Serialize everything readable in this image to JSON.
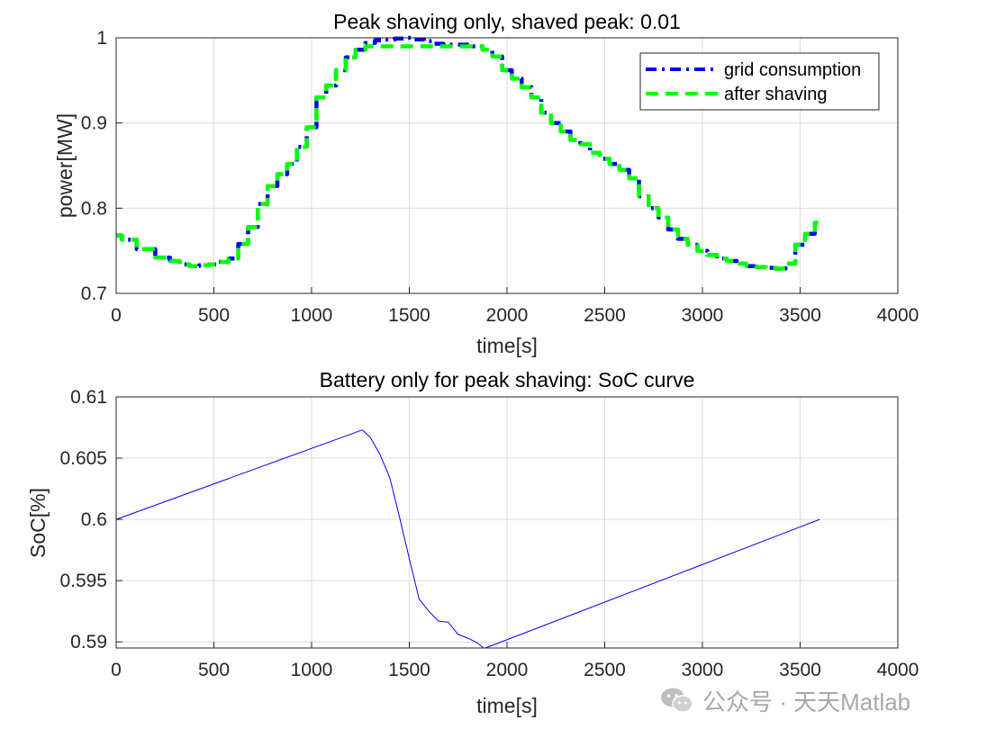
{
  "chart_data": [
    {
      "type": "line",
      "title": "Peak shaving only, shaved peak: 0.01",
      "xlabel": "time[s]",
      "ylabel": "power[MW]",
      "xlim": [
        0,
        4000
      ],
      "ylim": [
        0.7,
        1.0
      ],
      "xticks": [
        "0",
        "500",
        "1000",
        "1500",
        "2000",
        "2500",
        "3000",
        "3500",
        "4000"
      ],
      "yticks": [
        "0.7",
        "0.8",
        "0.9",
        "1"
      ],
      "grid": true,
      "legend_position": "top-right",
      "series": [
        {
          "name": "grid consumption",
          "color": "#0000ff",
          "style": "dashdot",
          "x": [
            0,
            60,
            150,
            250,
            300,
            350,
            400,
            450,
            500,
            550,
            600,
            650,
            700,
            750,
            800,
            850,
            900,
            950,
            1000,
            1050,
            1100,
            1150,
            1200,
            1250,
            1300,
            1350,
            1400,
            1450,
            1500,
            1550,
            1600,
            1650,
            1700,
            1750,
            1800,
            1850,
            1900,
            1950,
            2000,
            2050,
            2100,
            2150,
            2200,
            2250,
            2300,
            2350,
            2400,
            2450,
            2500,
            2550,
            2600,
            2650,
            2700,
            2750,
            2800,
            2850,
            2900,
            2950,
            3000,
            3050,
            3100,
            3150,
            3200,
            3250,
            3300,
            3350,
            3400,
            3450,
            3500,
            3550,
            3600
          ],
          "y": [
            0.768,
            0.763,
            0.752,
            0.742,
            0.738,
            0.734,
            0.732,
            0.733,
            0.734,
            0.737,
            0.741,
            0.758,
            0.778,
            0.805,
            0.826,
            0.84,
            0.852,
            0.872,
            0.895,
            0.93,
            0.944,
            0.962,
            0.977,
            0.986,
            0.994,
            0.997,
            0.998,
            0.999,
            1.0,
            0.998,
            0.996,
            0.993,
            0.992,
            0.992,
            0.992,
            0.99,
            0.986,
            0.978,
            0.962,
            0.952,
            0.942,
            0.93,
            0.912,
            0.9,
            0.89,
            0.88,
            0.875,
            0.865,
            0.858,
            0.852,
            0.845,
            0.835,
            0.814,
            0.8,
            0.789,
            0.775,
            0.764,
            0.757,
            0.75,
            0.745,
            0.741,
            0.738,
            0.735,
            0.732,
            0.731,
            0.73,
            0.729,
            0.735,
            0.757,
            0.77,
            0.783
          ]
        },
        {
          "name": "after shaving",
          "color": "#00ff00",
          "style": "dashed",
          "x": [
            0,
            60,
            150,
            250,
            300,
            350,
            400,
            450,
            500,
            550,
            600,
            650,
            700,
            750,
            800,
            850,
            900,
            950,
            1000,
            1050,
            1100,
            1150,
            1200,
            1250,
            1300,
            1350,
            1400,
            1450,
            1500,
            1550,
            1600,
            1650,
            1700,
            1750,
            1800,
            1850,
            1900,
            1950,
            2000,
            2050,
            2100,
            2150,
            2200,
            2250,
            2300,
            2350,
            2400,
            2450,
            2500,
            2550,
            2600,
            2650,
            2700,
            2750,
            2800,
            2850,
            2900,
            2950,
            3000,
            3050,
            3100,
            3150,
            3200,
            3250,
            3300,
            3350,
            3400,
            3450,
            3500,
            3550,
            3600
          ],
          "y": [
            0.768,
            0.763,
            0.752,
            0.742,
            0.738,
            0.734,
            0.732,
            0.733,
            0.734,
            0.737,
            0.741,
            0.758,
            0.778,
            0.805,
            0.826,
            0.84,
            0.852,
            0.872,
            0.895,
            0.93,
            0.944,
            0.962,
            0.977,
            0.986,
            0.99,
            0.99,
            0.99,
            0.99,
            0.99,
            0.99,
            0.99,
            0.99,
            0.99,
            0.99,
            0.99,
            0.99,
            0.986,
            0.978,
            0.962,
            0.952,
            0.942,
            0.93,
            0.912,
            0.9,
            0.89,
            0.88,
            0.875,
            0.865,
            0.858,
            0.852,
            0.845,
            0.835,
            0.814,
            0.8,
            0.789,
            0.775,
            0.764,
            0.757,
            0.75,
            0.745,
            0.741,
            0.738,
            0.735,
            0.732,
            0.731,
            0.73,
            0.729,
            0.735,
            0.757,
            0.77,
            0.783
          ]
        }
      ]
    },
    {
      "type": "line",
      "title": "Battery only for peak shaving: SoC curve",
      "xlabel": "time[s]",
      "ylabel": "SoC[%]",
      "xlim": [
        0,
        4000
      ],
      "ylim": [
        0.5895,
        0.61
      ],
      "xticks": [
        "0",
        "500",
        "1000",
        "1500",
        "2000",
        "2500",
        "3000",
        "3500",
        "4000"
      ],
      "yticks": [
        "0.59",
        "0.595",
        "0.6",
        "0.605",
        "0.61"
      ],
      "ytick_values": [
        0.59,
        0.595,
        0.6,
        0.605,
        0.61
      ],
      "grid": true,
      "series": [
        {
          "name": "SoC",
          "color": "#0000ff",
          "x": [
            0,
            1260,
            1300,
            1350,
            1400,
            1450,
            1500,
            1550,
            1600,
            1650,
            1700,
            1750,
            1800,
            1850,
            1880,
            1890,
            3600
          ],
          "y": [
            0.6,
            0.6073,
            0.6067,
            0.6053,
            0.6034,
            0.6002,
            0.5968,
            0.5935,
            0.5925,
            0.5917,
            0.5916,
            0.5906,
            0.5903,
            0.5899,
            0.5895,
            0.5895,
            0.6
          ]
        }
      ]
    }
  ],
  "legend": {
    "items": [
      "grid consumption",
      "after shaving"
    ]
  },
  "watermark": {
    "text": "公众号 · 天天Matlab",
    "logo_icon": "wechat-icon"
  }
}
